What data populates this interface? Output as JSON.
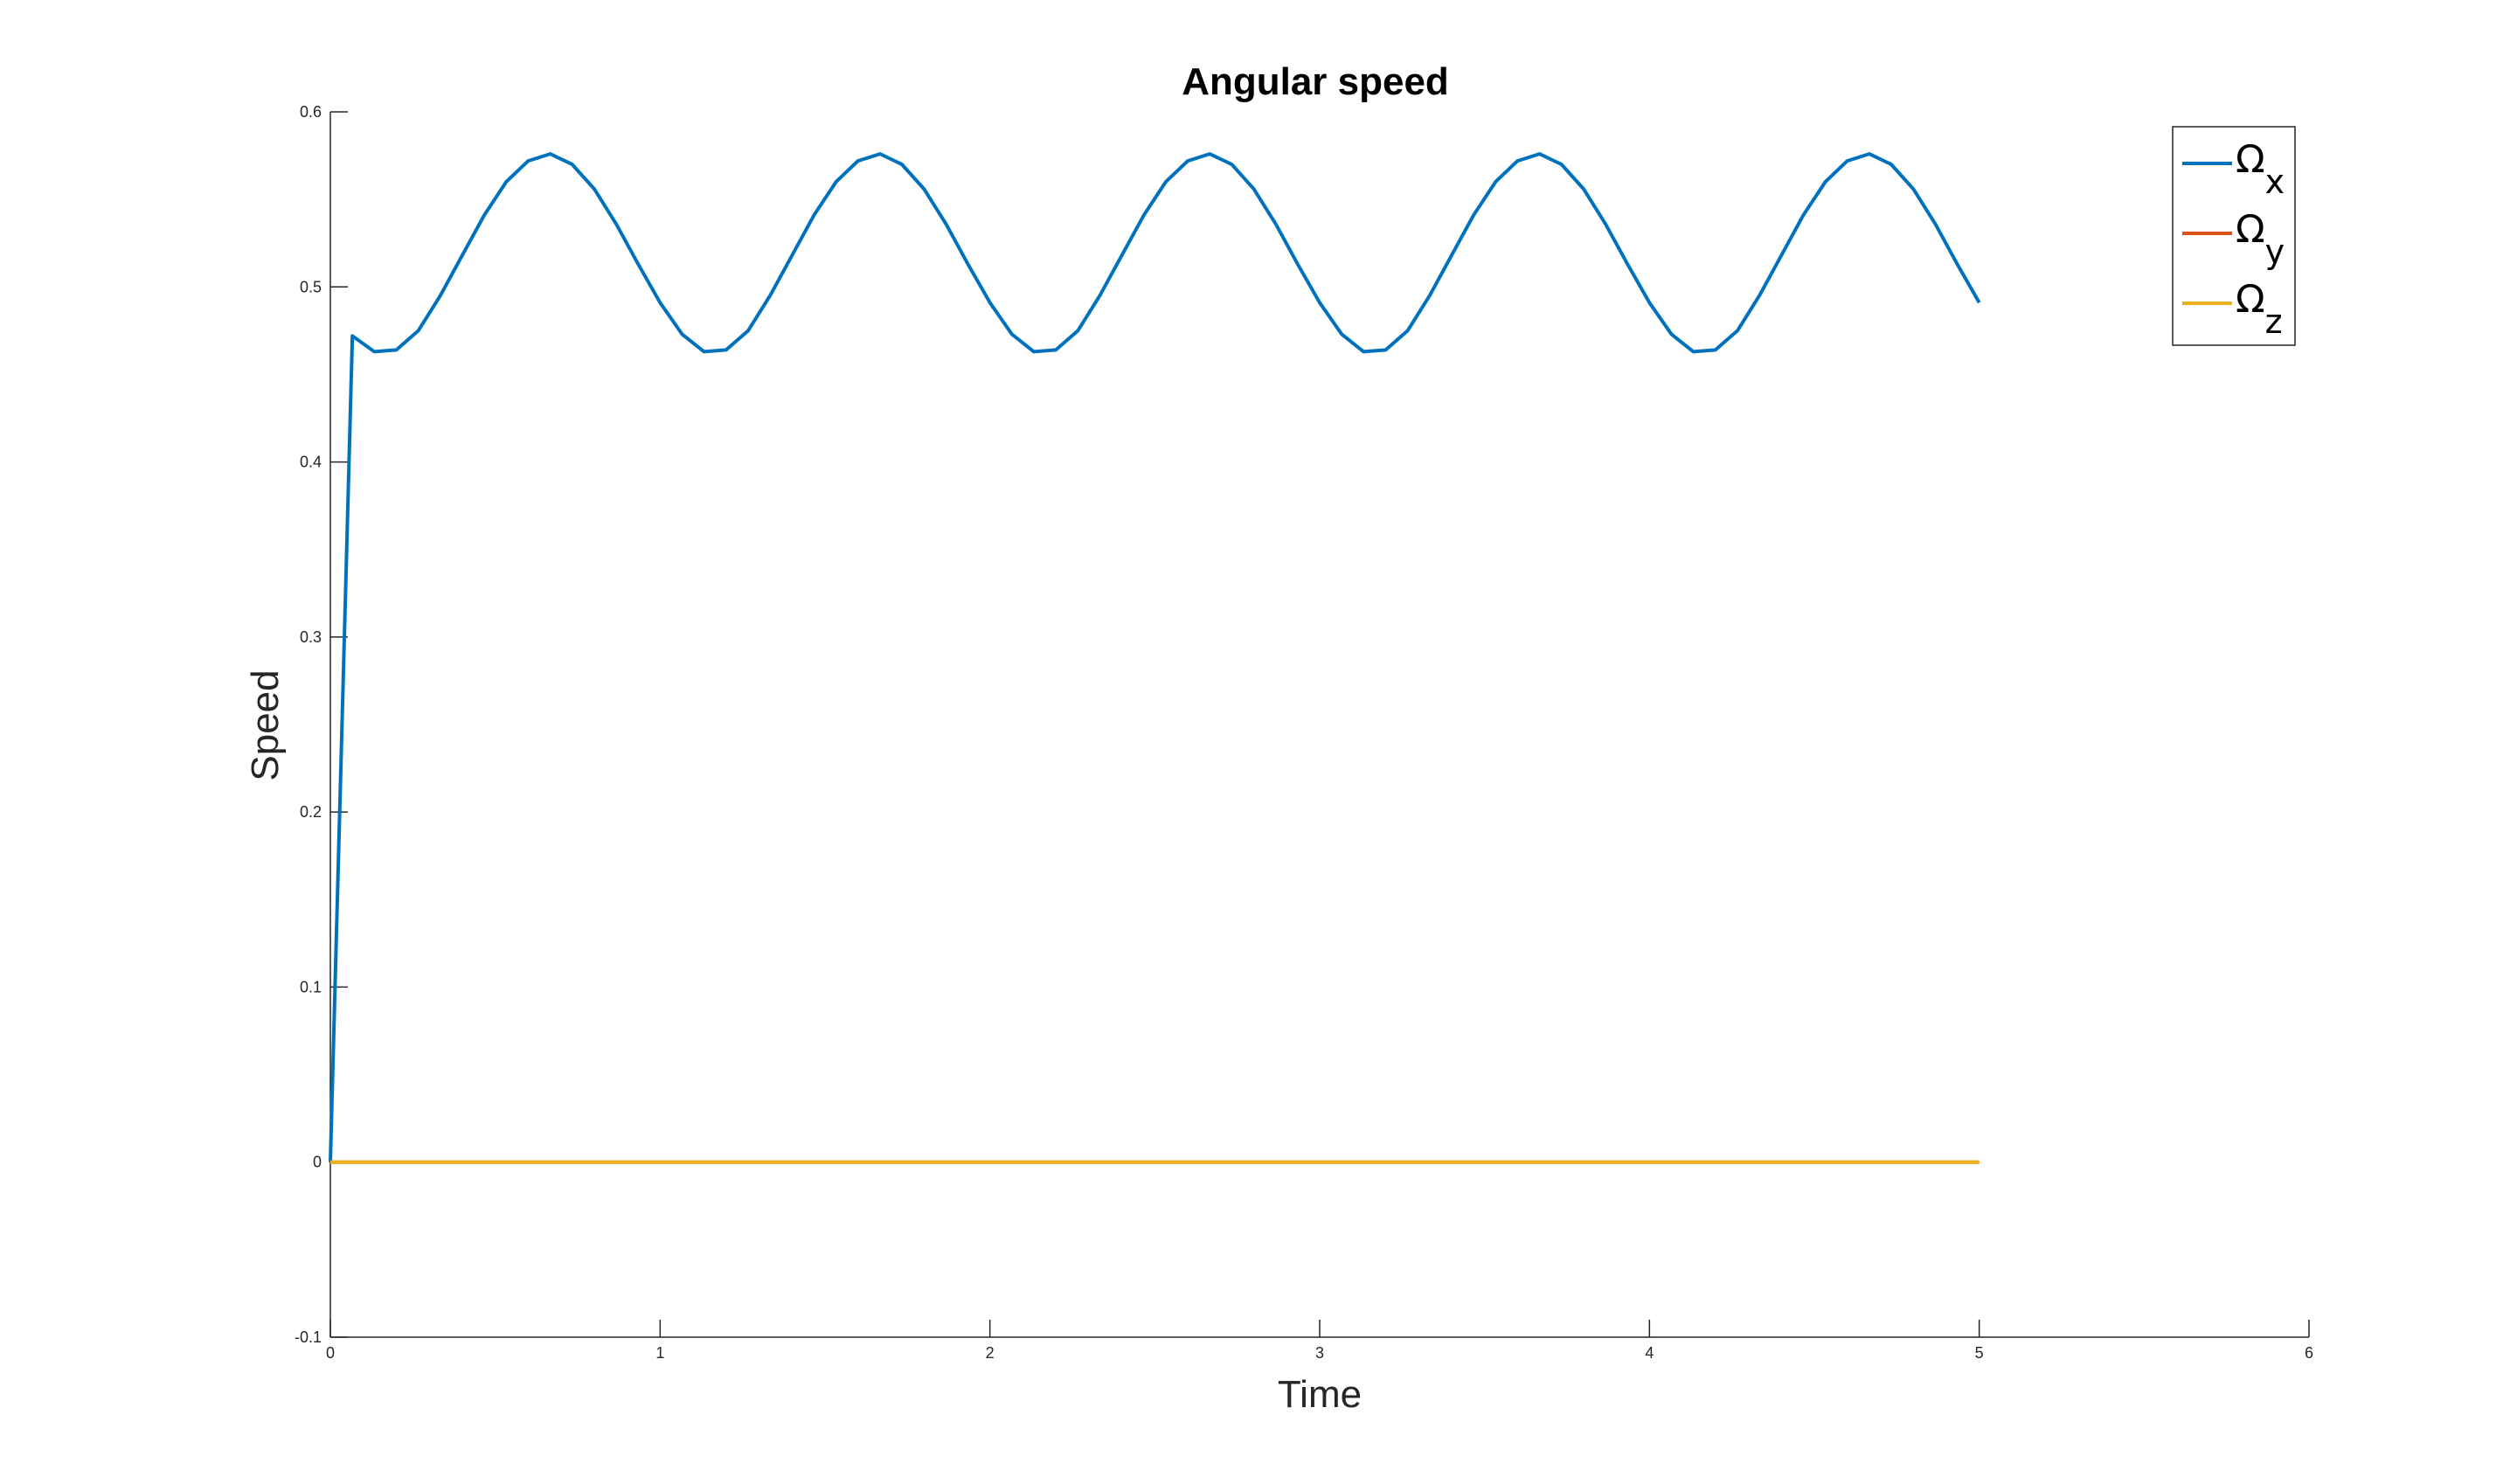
{
  "chart_data": {
    "type": "line",
    "title": "Angular speed",
    "xlabel": "Time",
    "ylabel": "Speed",
    "xlim": [
      0,
      6
    ],
    "ylim": [
      -0.1,
      0.6
    ],
    "xticks": [
      "0",
      "1",
      "2",
      "3",
      "4",
      "5",
      "6"
    ],
    "yticks": [
      "-0.1",
      "0",
      "0.1",
      "0.2",
      "0.3",
      "0.4",
      "0.5",
      "0.6"
    ],
    "legend_position": "top-right",
    "grid": false,
    "series": [
      {
        "name": "Ωx",
        "symbol": "Ω",
        "subscript": "x",
        "color": "#0072BD",
        "x": [
          0,
          0.0667,
          0.1333,
          0.2,
          0.2667,
          0.3333,
          0.4,
          0.4667,
          0.5333,
          0.6,
          0.6667,
          0.7333,
          0.8,
          0.8667,
          0.9333,
          1.0,
          1.0667,
          1.1333,
          1.2,
          1.2667,
          1.3333,
          1.4,
          1.4667,
          1.5333,
          1.6,
          1.6667,
          1.7333,
          1.8,
          1.8667,
          1.9333,
          2.0,
          2.0667,
          2.1333,
          2.2,
          2.2667,
          2.3333,
          2.4,
          2.4667,
          2.5333,
          2.6,
          2.6667,
          2.7333,
          2.8,
          2.8667,
          2.9333,
          3.0,
          3.0667,
          3.1333,
          3.2,
          3.2667,
          3.3333,
          3.4,
          3.4667,
          3.5333,
          3.6,
          3.6667,
          3.7333,
          3.8,
          3.8667,
          3.9333,
          4.0,
          4.0667,
          4.1333,
          4.2,
          4.2667,
          4.3333,
          4.4,
          4.4667,
          4.5333,
          4.6,
          4.6667,
          4.7333,
          4.8,
          4.8667,
          4.9333,
          5.0
        ],
        "values": [
          0,
          0.472,
          0.463,
          0.464,
          0.475,
          0.495,
          0.518,
          0.541,
          0.56,
          0.572,
          0.576,
          0.57,
          0.556,
          0.536,
          0.513,
          0.491,
          0.473,
          0.463,
          0.464,
          0.475,
          0.495,
          0.518,
          0.541,
          0.56,
          0.572,
          0.576,
          0.57,
          0.556,
          0.536,
          0.513,
          0.491,
          0.473,
          0.463,
          0.464,
          0.475,
          0.495,
          0.518,
          0.541,
          0.56,
          0.572,
          0.576,
          0.57,
          0.556,
          0.536,
          0.513,
          0.491,
          0.473,
          0.463,
          0.464,
          0.475,
          0.495,
          0.518,
          0.541,
          0.56,
          0.572,
          0.576,
          0.57,
          0.556,
          0.536,
          0.513,
          0.491,
          0.473,
          0.463,
          0.464,
          0.475,
          0.495,
          0.518,
          0.541,
          0.56,
          0.572,
          0.576,
          0.57,
          0.556,
          0.536,
          0.513,
          0.491
        ]
      },
      {
        "name": "Ωy",
        "symbol": "Ω",
        "subscript": "y",
        "color": "#D95319",
        "x": [
          0,
          5
        ],
        "values": [
          0,
          0
        ]
      },
      {
        "name": "Ωz",
        "symbol": "Ω",
        "subscript": "z",
        "color": "#EDB120",
        "x": [
          0,
          5
        ],
        "values": [
          0,
          0
        ]
      }
    ]
  }
}
